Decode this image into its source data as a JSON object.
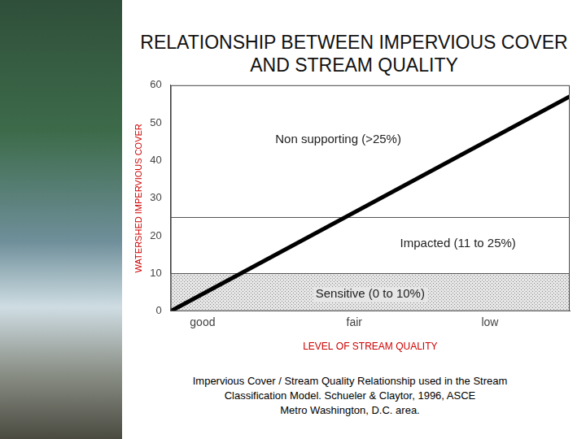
{
  "chart_data": {
    "type": "line",
    "title": "RELATIONSHIP BETWEEN IMPERVIOUS COVER AND STREAM QUALITY",
    "x_label": "LEVEL OF STREAM QUALITY",
    "y_label": "WATERSHED IMPERVIOUS COVER",
    "caption": [
      "Impervious Cover / Stream Quality Relationship used in the Stream",
      "Classification Model.  Schueler & Claytor, 1996, ASCE",
      "Metro Washington, D.C. area."
    ],
    "x": [
      0,
      100
    ],
    "values": [
      0,
      57
    ],
    "color": "#000000",
    "xlim": [
      0,
      100
    ],
    "xticks": [
      {
        "value": 8,
        "label": "good"
      },
      {
        "value": 46,
        "label": "fair"
      },
      {
        "value": 80,
        "label": "low"
      }
    ],
    "ylim": [
      0,
      60
    ],
    "yticks": [
      0,
      10,
      20,
      30,
      40,
      50,
      60
    ],
    "grid": false,
    "bands": [
      {
        "label": "Sensitive (0 to 10%)",
        "from": 0,
        "to": 10
      },
      {
        "label": "Impacted (11 to 25%)",
        "from": 10,
        "to": 25
      },
      {
        "label": "Non supporting (>25%)",
        "from": 25,
        "to": 60
      }
    ]
  }
}
